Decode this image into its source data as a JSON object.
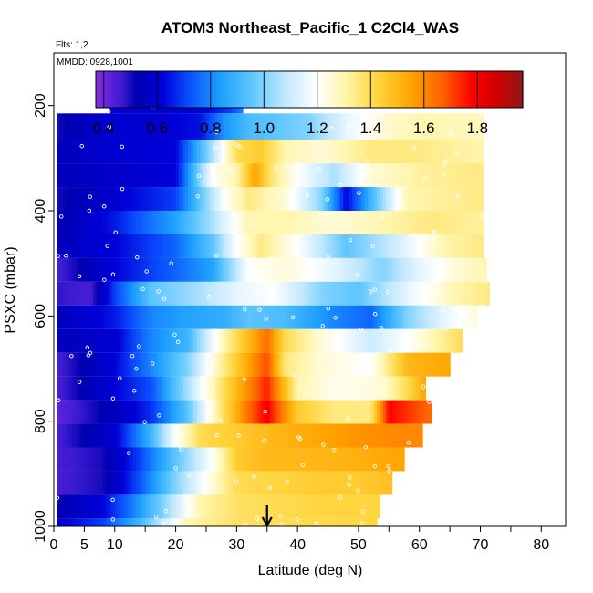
{
  "chart_data": {
    "type": "heatmap",
    "title": "ATOM3 Northeast_Pacific_1 C2Cl4_WAS",
    "flights_label": "Flts: 1,2",
    "dates_label": "MMDD: 0928,1001",
    "xlabel": "Latitude (deg N)",
    "ylabel": "PSXC (mbar)",
    "xlim": [
      0,
      84
    ],
    "ylim": [
      1000,
      100
    ],
    "x_ticks": [
      0,
      5,
      10,
      20,
      30,
      40,
      50,
      60,
      70,
      80
    ],
    "y_ticks": [
      200,
      400,
      600,
      800,
      1000
    ],
    "marker_latitude": 35,
    "colorbar": {
      "range": [
        0.37,
        1.97
      ],
      "tick_values": [
        0.4,
        0.6,
        0.8,
        1.0,
        1.2,
        1.4,
        1.6,
        1.8
      ],
      "tick_labels": [
        "0.4",
        "0.6",
        "0.8",
        "1.0",
        "1.2",
        "1.4",
        "1.6",
        "1.8"
      ],
      "stops": [
        {
          "v": 0.37,
          "c": "#8a2be2"
        },
        {
          "v": 0.47,
          "c": "#3a1ad0"
        },
        {
          "v": 0.52,
          "c": "#0000b0"
        },
        {
          "v": 0.62,
          "c": "#0000d8"
        },
        {
          "v": 0.72,
          "c": "#0b50ff"
        },
        {
          "v": 0.84,
          "c": "#1ea0ff"
        },
        {
          "v": 0.96,
          "c": "#62c8ff"
        },
        {
          "v": 1.08,
          "c": "#c2e8ff"
        },
        {
          "v": 1.2,
          "c": "#ffffff"
        },
        {
          "v": 1.3,
          "c": "#fff6b0"
        },
        {
          "v": 1.42,
          "c": "#ffd640"
        },
        {
          "v": 1.55,
          "c": "#ffa500"
        },
        {
          "v": 1.67,
          "c": "#ff6000"
        },
        {
          "v": 1.78,
          "c": "#ff0000"
        },
        {
          "v": 1.88,
          "c": "#cc0000"
        },
        {
          "v": 1.97,
          "c": "#8b1a1a"
        }
      ]
    },
    "bands": [
      {
        "p_top": 170,
        "p_bot": 215,
        "lat_min": 9,
        "lat_max": 31,
        "pts": [
          [
            9,
            0.62
          ],
          [
            14,
            0.6
          ],
          [
            20,
            0.58
          ],
          [
            25,
            0.62
          ],
          [
            29,
            0.7
          ],
          [
            31,
            0.8
          ]
        ]
      },
      {
        "p_top": 215,
        "p_bot": 265,
        "lat_min": 0.5,
        "lat_max": 70.5,
        "pts": [
          [
            0.5,
            0.5
          ],
          [
            8,
            0.6
          ],
          [
            16,
            0.6
          ],
          [
            24,
            0.64
          ],
          [
            28,
            0.82
          ],
          [
            32,
            0.92
          ],
          [
            36,
            0.95
          ],
          [
            42,
            1.0
          ],
          [
            48,
            1.15
          ],
          [
            56,
            1.28
          ],
          [
            62,
            1.3
          ],
          [
            70.5,
            1.28
          ]
        ]
      },
      {
        "p_top": 265,
        "p_bot": 310,
        "lat_min": 0.5,
        "lat_max": 70.5,
        "pts": [
          [
            0.5,
            0.55
          ],
          [
            10,
            0.6
          ],
          [
            20,
            0.62
          ],
          [
            26,
            1.05
          ],
          [
            30,
            1.4
          ],
          [
            34,
            1.45
          ],
          [
            38,
            1.3
          ],
          [
            44,
            1.25
          ],
          [
            52,
            1.35
          ],
          [
            60,
            1.35
          ],
          [
            70.5,
            1.3
          ]
        ]
      },
      {
        "p_top": 310,
        "p_bot": 355,
        "lat_min": 0.5,
        "lat_max": 70.5,
        "pts": [
          [
            0.5,
            0.55
          ],
          [
            10,
            0.58
          ],
          [
            20,
            0.62
          ],
          [
            26,
            1.2
          ],
          [
            30,
            1.3
          ],
          [
            33,
            1.55
          ],
          [
            36,
            1.35
          ],
          [
            40,
            1.2
          ],
          [
            46,
            1.05
          ],
          [
            52,
            1.25
          ],
          [
            60,
            1.32
          ],
          [
            70.5,
            1.35
          ]
        ]
      },
      {
        "p_top": 355,
        "p_bot": 400,
        "lat_min": 0.5,
        "lat_max": 70.5,
        "pts": [
          [
            0.5,
            0.5
          ],
          [
            10,
            0.6
          ],
          [
            20,
            0.7
          ],
          [
            28,
            1.2
          ],
          [
            32,
            1.35
          ],
          [
            38,
            1.25
          ],
          [
            44,
            1.0
          ],
          [
            48,
            0.62
          ],
          [
            52,
            0.9
          ],
          [
            58,
            1.3
          ],
          [
            70.5,
            1.35
          ]
        ]
      },
      {
        "p_top": 400,
        "p_bot": 445,
        "lat_min": 0.5,
        "lat_max": 70.5,
        "pts": [
          [
            0.5,
            0.52
          ],
          [
            10,
            0.65
          ],
          [
            20,
            0.85
          ],
          [
            26,
            1.05
          ],
          [
            32,
            1.3
          ],
          [
            38,
            1.3
          ],
          [
            46,
            1.25
          ],
          [
            54,
            1.3
          ],
          [
            62,
            1.35
          ],
          [
            70.5,
            1.32
          ]
        ]
      },
      {
        "p_top": 445,
        "p_bot": 490,
        "lat_min": 0.5,
        "lat_max": 70.5,
        "pts": [
          [
            0.5,
            0.55
          ],
          [
            10,
            0.62
          ],
          [
            20,
            0.75
          ],
          [
            26,
            0.95
          ],
          [
            30,
            1.2
          ],
          [
            34,
            1.35
          ],
          [
            40,
            1.2
          ],
          [
            48,
            0.95
          ],
          [
            56,
            1.1
          ],
          [
            64,
            1.3
          ],
          [
            70.5,
            1.35
          ]
        ]
      },
      {
        "p_top": 490,
        "p_bot": 535,
        "lat_min": 0.5,
        "lat_max": 71,
        "pts": [
          [
            0.5,
            0.45
          ],
          [
            10,
            0.62
          ],
          [
            20,
            0.75
          ],
          [
            26,
            0.85
          ],
          [
            32,
            1.2
          ],
          [
            38,
            1.25
          ],
          [
            46,
            1.15
          ],
          [
            54,
            1.0
          ],
          [
            60,
            1.15
          ],
          [
            66,
            1.25
          ],
          [
            71,
            1.3
          ]
        ]
      },
      {
        "p_top": 535,
        "p_bot": 580,
        "lat_min": 0.5,
        "lat_max": 71.5,
        "pts": [
          [
            0.5,
            0.48
          ],
          [
            6,
            0.45
          ],
          [
            10,
            0.7
          ],
          [
            16,
            0.95
          ],
          [
            24,
            1.05
          ],
          [
            30,
            1.15
          ],
          [
            36,
            1.2
          ],
          [
            44,
            1.0
          ],
          [
            50,
            0.95
          ],
          [
            58,
            1.15
          ],
          [
            66,
            1.3
          ],
          [
            71.5,
            1.35
          ]
        ]
      },
      {
        "p_top": 580,
        "p_bot": 625,
        "lat_min": 0.5,
        "lat_max": 69.5,
        "pts": [
          [
            0.5,
            0.55
          ],
          [
            10,
            0.65
          ],
          [
            16,
            0.8
          ],
          [
            22,
            0.85
          ],
          [
            28,
            0.88
          ],
          [
            32,
            0.95
          ],
          [
            38,
            0.92
          ],
          [
            46,
            0.8
          ],
          [
            52,
            0.75
          ],
          [
            58,
            1.0
          ],
          [
            64,
            1.15
          ],
          [
            69.5,
            1.25
          ]
        ]
      },
      {
        "p_top": 625,
        "p_bot": 670,
        "lat_min": 0.5,
        "lat_max": 67,
        "pts": [
          [
            0.5,
            0.55
          ],
          [
            10,
            0.6
          ],
          [
            16,
            0.8
          ],
          [
            22,
            0.9
          ],
          [
            28,
            1.3
          ],
          [
            32,
            1.5
          ],
          [
            35,
            1.65
          ],
          [
            38,
            1.4
          ],
          [
            44,
            1.25
          ],
          [
            52,
            1.1
          ],
          [
            58,
            1.2
          ],
          [
            67,
            1.4
          ]
        ]
      },
      {
        "p_top": 670,
        "p_bot": 715,
        "lat_min": 0.5,
        "lat_max": 65,
        "pts": [
          [
            0.5,
            0.45
          ],
          [
            10,
            0.62
          ],
          [
            16,
            0.8
          ],
          [
            22,
            1.0
          ],
          [
            28,
            1.35
          ],
          [
            32,
            1.55
          ],
          [
            35,
            1.7
          ],
          [
            38,
            1.35
          ],
          [
            44,
            1.25
          ],
          [
            52,
            1.2
          ],
          [
            58,
            1.5
          ],
          [
            65,
            1.55
          ]
        ]
      },
      {
        "p_top": 715,
        "p_bot": 760,
        "lat_min": 0.5,
        "lat_max": 61,
        "pts": [
          [
            0.5,
            0.45
          ],
          [
            10,
            0.62
          ],
          [
            16,
            0.72
          ],
          [
            22,
            1.05
          ],
          [
            28,
            1.4
          ],
          [
            32,
            1.6
          ],
          [
            35,
            1.75
          ],
          [
            40,
            1.3
          ],
          [
            46,
            1.22
          ],
          [
            54,
            1.25
          ],
          [
            58,
            1.4
          ],
          [
            61,
            1.55
          ]
        ]
      },
      {
        "p_top": 760,
        "p_bot": 805,
        "lat_min": 0.5,
        "lat_max": 62,
        "pts": [
          [
            0.5,
            0.42
          ],
          [
            10,
            0.55
          ],
          [
            16,
            0.68
          ],
          [
            22,
            0.95
          ],
          [
            28,
            1.4
          ],
          [
            32,
            1.65
          ],
          [
            35,
            1.8
          ],
          [
            40,
            1.45
          ],
          [
            46,
            1.35
          ],
          [
            52,
            1.35
          ],
          [
            55,
            1.78
          ],
          [
            62,
            1.65
          ]
        ]
      },
      {
        "p_top": 805,
        "p_bot": 850,
        "lat_min": 0.5,
        "lat_max": 60.5,
        "pts": [
          [
            0.5,
            0.45
          ],
          [
            10,
            0.6
          ],
          [
            16,
            0.9
          ],
          [
            20,
            1.2
          ],
          [
            24,
            1.4
          ],
          [
            30,
            1.45
          ],
          [
            36,
            1.5
          ],
          [
            44,
            1.55
          ],
          [
            50,
            1.58
          ],
          [
            56,
            1.6
          ],
          [
            60.5,
            1.6
          ]
        ]
      },
      {
        "p_top": 850,
        "p_bot": 895,
        "lat_min": 0.5,
        "lat_max": 57.5,
        "pts": [
          [
            0.5,
            0.45
          ],
          [
            8,
            0.5
          ],
          [
            14,
            0.7
          ],
          [
            20,
            0.95
          ],
          [
            26,
            1.2
          ],
          [
            30,
            1.45
          ],
          [
            35,
            1.5
          ],
          [
            42,
            1.5
          ],
          [
            50,
            1.52
          ],
          [
            57.5,
            1.55
          ]
        ]
      },
      {
        "p_top": 895,
        "p_bot": 940,
        "lat_min": 0.5,
        "lat_max": 55.5,
        "pts": [
          [
            0.5,
            0.45
          ],
          [
            8,
            0.5
          ],
          [
            14,
            0.72
          ],
          [
            20,
            1.0
          ],
          [
            26,
            1.25
          ],
          [
            30,
            1.4
          ],
          [
            36,
            1.42
          ],
          [
            44,
            1.45
          ],
          [
            50,
            1.45
          ],
          [
            55.5,
            1.48
          ]
        ]
      },
      {
        "p_top": 940,
        "p_bot": 985,
        "lat_min": 0.5,
        "lat_max": 53.5,
        "pts": [
          [
            0.5,
            0.52
          ],
          [
            8,
            0.62
          ],
          [
            12,
            0.75
          ],
          [
            18,
            1.0
          ],
          [
            24,
            1.3
          ],
          [
            30,
            1.38
          ],
          [
            36,
            1.4
          ],
          [
            44,
            1.42
          ],
          [
            53.5,
            1.42
          ]
        ]
      },
      {
        "p_top": 985,
        "p_bot": 1000,
        "lat_min": 0.5,
        "lat_max": 53,
        "pts": [
          [
            0.5,
            0.6
          ],
          [
            8,
            0.7
          ],
          [
            14,
            0.9
          ],
          [
            22,
            1.3
          ],
          [
            30,
            1.38
          ],
          [
            40,
            1.4
          ],
          [
            53,
            1.42
          ]
        ]
      }
    ]
  }
}
